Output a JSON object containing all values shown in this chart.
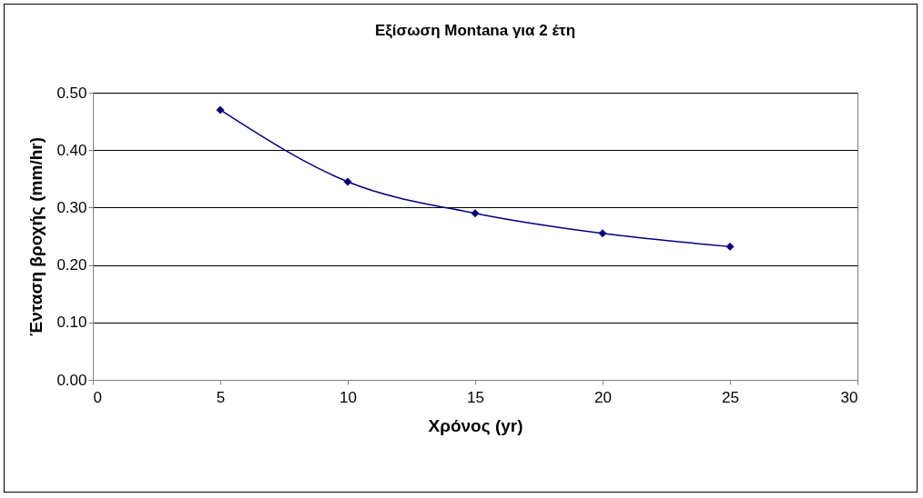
{
  "chart_data": {
    "type": "line",
    "title": "Εξίσωση Montana για 2 έτη",
    "xlabel": "Χρόνος (yr)",
    "ylabel": "Ένταση βροχής (mm/hr)",
    "x": [
      5,
      10,
      15,
      20,
      25
    ],
    "series": [
      {
        "color": "#000080",
        "values": [
          0.47,
          0.345,
          0.29,
          0.255,
          0.232
        ]
      }
    ],
    "xlim": [
      0,
      30
    ],
    "xticks": [
      0,
      5,
      10,
      15,
      20,
      25,
      30
    ],
    "ylim": [
      0,
      0.5
    ],
    "yticks": [
      {
        "value": 0,
        "label": "0.00"
      },
      {
        "value": 0.1,
        "label": "0.10"
      },
      {
        "value": 0.2,
        "label": "0.20"
      },
      {
        "value": 0.3,
        "label": "0.30"
      },
      {
        "value": 0.4,
        "label": "0.40"
      },
      {
        "value": 0.5,
        "label": "0.50"
      }
    ],
    "grid": "y",
    "marker": "diamond",
    "line_style": "solid"
  }
}
